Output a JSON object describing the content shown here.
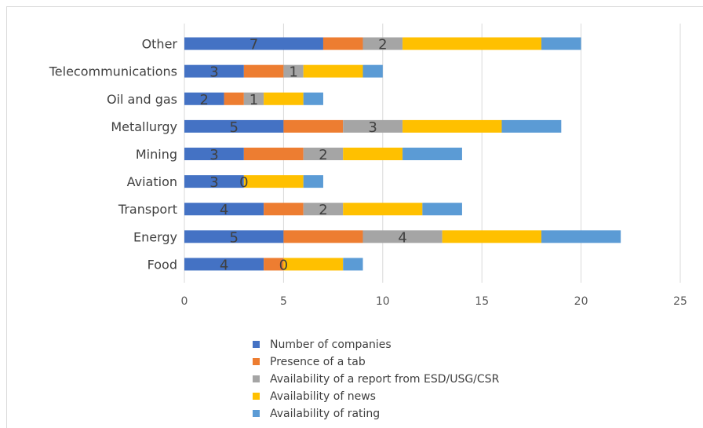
{
  "chart_data": {
    "type": "bar",
    "orientation": "horizontal",
    "stacked": true,
    "categories": [
      "Food",
      "Energy",
      "Transport",
      "Aviation",
      "Mining",
      "Metallurgy",
      "Oil and gas",
      "Telecommunications",
      "Other"
    ],
    "series": [
      {
        "name": "Number of companies",
        "color": "#4472c4",
        "values": [
          4,
          5,
          4,
          3,
          3,
          5,
          2,
          3,
          7
        ]
      },
      {
        "name": "Presence of a tab",
        "color": "#ed7d31",
        "values": [
          1,
          4,
          2,
          0,
          3,
          3,
          1,
          2,
          2
        ]
      },
      {
        "name": "Availability of a report from ESD/USG/CSR",
        "color": "#a5a5a5",
        "values": [
          0,
          4,
          2,
          0,
          2,
          3,
          1,
          1,
          2
        ]
      },
      {
        "name": "Availability of news",
        "color": "#ffc000",
        "values": [
          3,
          5,
          4,
          3,
          3,
          5,
          2,
          3,
          7
        ]
      },
      {
        "name": "Availability of rating",
        "color": "#5b9bd5",
        "values": [
          1,
          4,
          2,
          1,
          3,
          3,
          1,
          1,
          2
        ]
      }
    ],
    "data_labels": [
      {
        "series": 0,
        "values": [
          "4",
          "5",
          "4",
          "3",
          "3",
          "5",
          "2",
          "3",
          "7"
        ]
      },
      {
        "series": 2,
        "values": [
          "0",
          "4",
          "2",
          "0",
          "2",
          "3",
          "1",
          "1",
          "2"
        ]
      }
    ],
    "xticks": [
      "0",
      "5",
      "10",
      "15",
      "20",
      "25"
    ],
    "xlim": [
      0,
      25
    ],
    "grid": true,
    "legend_position": "bottom",
    "title": "",
    "xlabel": "",
    "ylabel": ""
  }
}
